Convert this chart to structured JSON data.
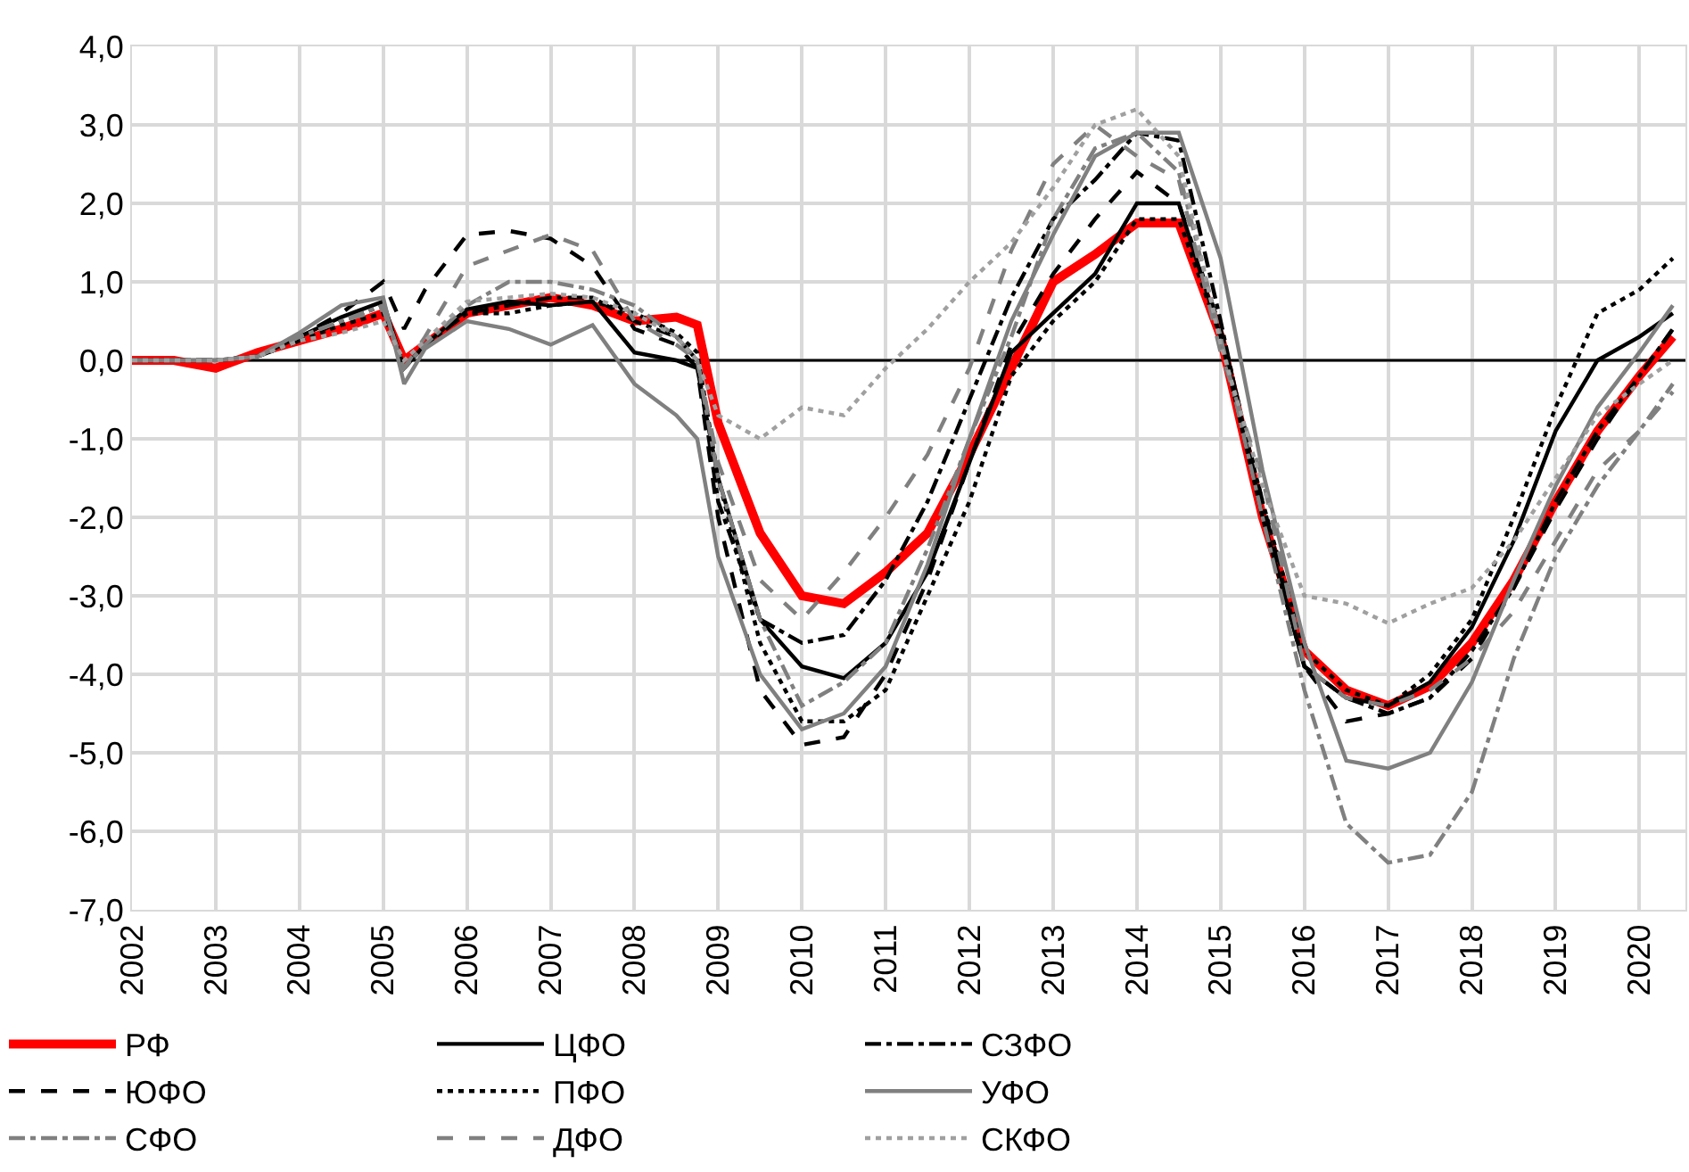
{
  "chart_data": {
    "type": "line",
    "x": [
      2002,
      2002.5,
      2003,
      2003.5,
      2004,
      2004.5,
      2005,
      2005.25,
      2005.5,
      2006,
      2006.5,
      2007,
      2007.5,
      2008,
      2008.5,
      2008.75,
      2009,
      2009.5,
      2010,
      2010.5,
      2011,
      2011.5,
      2012,
      2012.5,
      2013,
      2013.5,
      2014,
      2014.5,
      2015,
      2015.5,
      2016,
      2016.5,
      2017,
      2017.5,
      2018,
      2018.5,
      2019,
      2019.5,
      2020,
      2020.4
    ],
    "series": [
      {
        "name": "РФ",
        "color": "#ff0000",
        "line_style": "solid",
        "values": [
          0,
          0,
          -0.1,
          0.1,
          0.25,
          0.4,
          0.6,
          0.0,
          0.2,
          0.6,
          0.7,
          0.8,
          0.7,
          0.5,
          0.55,
          0.45,
          -0.8,
          -2.2,
          -3.0,
          -3.1,
          -2.7,
          -2.2,
          -1.2,
          -0.1,
          1.0,
          1.35,
          1.75,
          1.75,
          0.3,
          -2.0,
          -3.7,
          -4.2,
          -4.4,
          -4.15,
          -3.6,
          -2.8,
          -1.8,
          -0.9,
          -0.2,
          0.3
        ]
      },
      {
        "name": "ЦФО",
        "color": "#000000",
        "line_style": "solid",
        "values": [
          0,
          0,
          0,
          0.05,
          0.3,
          0.55,
          0.75,
          -0.1,
          0.2,
          0.65,
          0.75,
          0.7,
          0.75,
          0.1,
          0.0,
          -0.1,
          -1.5,
          -3.3,
          -3.9,
          -4.05,
          -3.6,
          -2.7,
          -1.3,
          0.1,
          0.6,
          1.1,
          2.0,
          2.0,
          0.3,
          -2.0,
          -3.9,
          -4.3,
          -4.4,
          -4.1,
          -3.4,
          -2.3,
          -0.9,
          0.0,
          0.3,
          0.6
        ]
      },
      {
        "name": "СЗФО",
        "color": "#000000",
        "line_style": "dashdot",
        "values": [
          0,
          0,
          0,
          0.05,
          0.25,
          0.5,
          0.7,
          -0.1,
          0.2,
          0.6,
          0.7,
          0.8,
          0.8,
          0.5,
          0.3,
          0.0,
          -1.8,
          -3.3,
          -3.6,
          -3.5,
          -2.8,
          -1.8,
          -0.5,
          0.8,
          1.8,
          2.3,
          2.9,
          2.8,
          0.5,
          -2.0,
          -3.9,
          -4.3,
          -4.5,
          -4.3,
          -3.7,
          -2.9,
          -1.8,
          -0.9,
          -0.2,
          0.4
        ]
      },
      {
        "name": "ЮФО",
        "color": "#000000",
        "line_style": "dashed",
        "values": [
          0,
          0,
          0,
          0.05,
          0.3,
          0.6,
          1.0,
          0.4,
          0.9,
          1.6,
          1.65,
          1.55,
          1.2,
          0.4,
          0.2,
          -0.1,
          -2.0,
          -4.2,
          -4.9,
          -4.8,
          -4.0,
          -2.8,
          -1.3,
          0.2,
          1.1,
          1.8,
          2.4,
          2.0,
          0.4,
          -1.8,
          -3.9,
          -4.6,
          -4.5,
          -4.3,
          -3.8,
          -2.9,
          -1.9,
          -1.0,
          -0.2,
          0.4
        ]
      },
      {
        "name": "ПФО",
        "color": "#000000",
        "line_style": "dotted",
        "values": [
          0,
          0,
          0,
          0.05,
          0.25,
          0.45,
          0.6,
          -0.1,
          0.2,
          0.6,
          0.6,
          0.7,
          0.75,
          0.6,
          0.35,
          0.1,
          -1.5,
          -3.6,
          -4.6,
          -4.6,
          -4.2,
          -3.0,
          -1.8,
          -0.2,
          0.5,
          1.0,
          1.8,
          1.8,
          0.3,
          -1.8,
          -3.7,
          -4.2,
          -4.4,
          -4.0,
          -3.3,
          -2.0,
          -0.6,
          0.6,
          0.9,
          1.3
        ]
      },
      {
        "name": "УФО",
        "color": "#808080",
        "line_style": "solid",
        "values": [
          0,
          0,
          0,
          0.05,
          0.35,
          0.7,
          0.8,
          -0.3,
          0.15,
          0.5,
          0.4,
          0.2,
          0.45,
          -0.3,
          -0.7,
          -1.0,
          -2.5,
          -4.0,
          -4.7,
          -4.5,
          -3.9,
          -2.6,
          -1.0,
          0.5,
          1.6,
          2.6,
          2.9,
          2.9,
          1.3,
          -1.4,
          -3.6,
          -5.1,
          -5.2,
          -5.0,
          -4.1,
          -2.8,
          -1.6,
          -0.6,
          0.1,
          0.7
        ]
      },
      {
        "name": "СФО",
        "color": "#808080",
        "line_style": "dashdot",
        "values": [
          0,
          0,
          0,
          0.05,
          0.3,
          0.5,
          0.7,
          -0.1,
          0.2,
          0.7,
          1.0,
          1.0,
          0.9,
          0.7,
          0.3,
          0.0,
          -1.5,
          -3.3,
          -4.4,
          -4.1,
          -3.6,
          -2.4,
          -1.0,
          0.3,
          1.8,
          2.7,
          2.9,
          2.4,
          0.3,
          -2.0,
          -4.2,
          -5.9,
          -6.4,
          -6.3,
          -5.5,
          -3.8,
          -2.5,
          -1.6,
          -0.9,
          -0.3
        ]
      },
      {
        "name": "ДФО",
        "color": "#808080",
        "line_style": "dashed",
        "values": [
          0,
          0,
          0,
          0.05,
          0.3,
          0.5,
          0.65,
          -0.1,
          0.3,
          1.2,
          1.4,
          1.6,
          1.4,
          0.5,
          0.2,
          0.0,
          -1.3,
          -2.8,
          -3.3,
          -2.7,
          -2.0,
          -1.2,
          -0.1,
          1.4,
          2.5,
          3.0,
          2.6,
          2.3,
          0.1,
          -1.5,
          -3.9,
          -4.3,
          -4.4,
          -4.2,
          -3.8,
          -3.2,
          -2.3,
          -1.4,
          -0.9,
          -0.4
        ]
      },
      {
        "name": "СКФО",
        "color": "#a0a0a0",
        "line_style": "dotted",
        "values": [
          0,
          0,
          0,
          0.05,
          0.25,
          0.35,
          0.5,
          0.0,
          0.25,
          0.75,
          0.8,
          0.85,
          0.8,
          0.6,
          0.3,
          0.0,
          -0.7,
          -1.0,
          -0.6,
          -0.7,
          -0.1,
          0.4,
          1.0,
          1.5,
          2.2,
          3.0,
          3.2,
          2.6,
          0.2,
          -1.6,
          -3.0,
          -3.1,
          -3.35,
          -3.1,
          -2.9,
          -2.3,
          -1.5,
          -0.7,
          -0.3,
          0.0
        ]
      }
    ],
    "xlim": [
      2002,
      2020.55
    ],
    "xticks": [
      2002,
      2003,
      2004,
      2005,
      2006,
      2007,
      2008,
      2009,
      2010,
      2011,
      2012,
      2013,
      2014,
      2015,
      2016,
      2017,
      2018,
      2019,
      2020
    ],
    "ylim": [
      -7,
      4
    ],
    "yticks": [
      {
        "value": 4,
        "label": "4,0"
      },
      {
        "value": 3,
        "label": "3,0"
      },
      {
        "value": 2,
        "label": "2,0"
      },
      {
        "value": 1,
        "label": "1,0"
      },
      {
        "value": 0,
        "label": "0,0"
      },
      {
        "value": -1,
        "label": "-1,0"
      },
      {
        "value": -2,
        "label": "-2,0"
      },
      {
        "value": -3,
        "label": "-3,0"
      },
      {
        "value": -4,
        "label": "-4,0"
      },
      {
        "value": -5,
        "label": "-5,0"
      },
      {
        "value": -6,
        "label": "-6,0"
      },
      {
        "value": -7,
        "label": "-7,0"
      }
    ],
    "ref_lines": [
      {
        "axis": "y",
        "value": 0,
        "label": null,
        "color": "#000000"
      }
    ],
    "grid": true,
    "legend": "bottom",
    "marker": "none"
  }
}
